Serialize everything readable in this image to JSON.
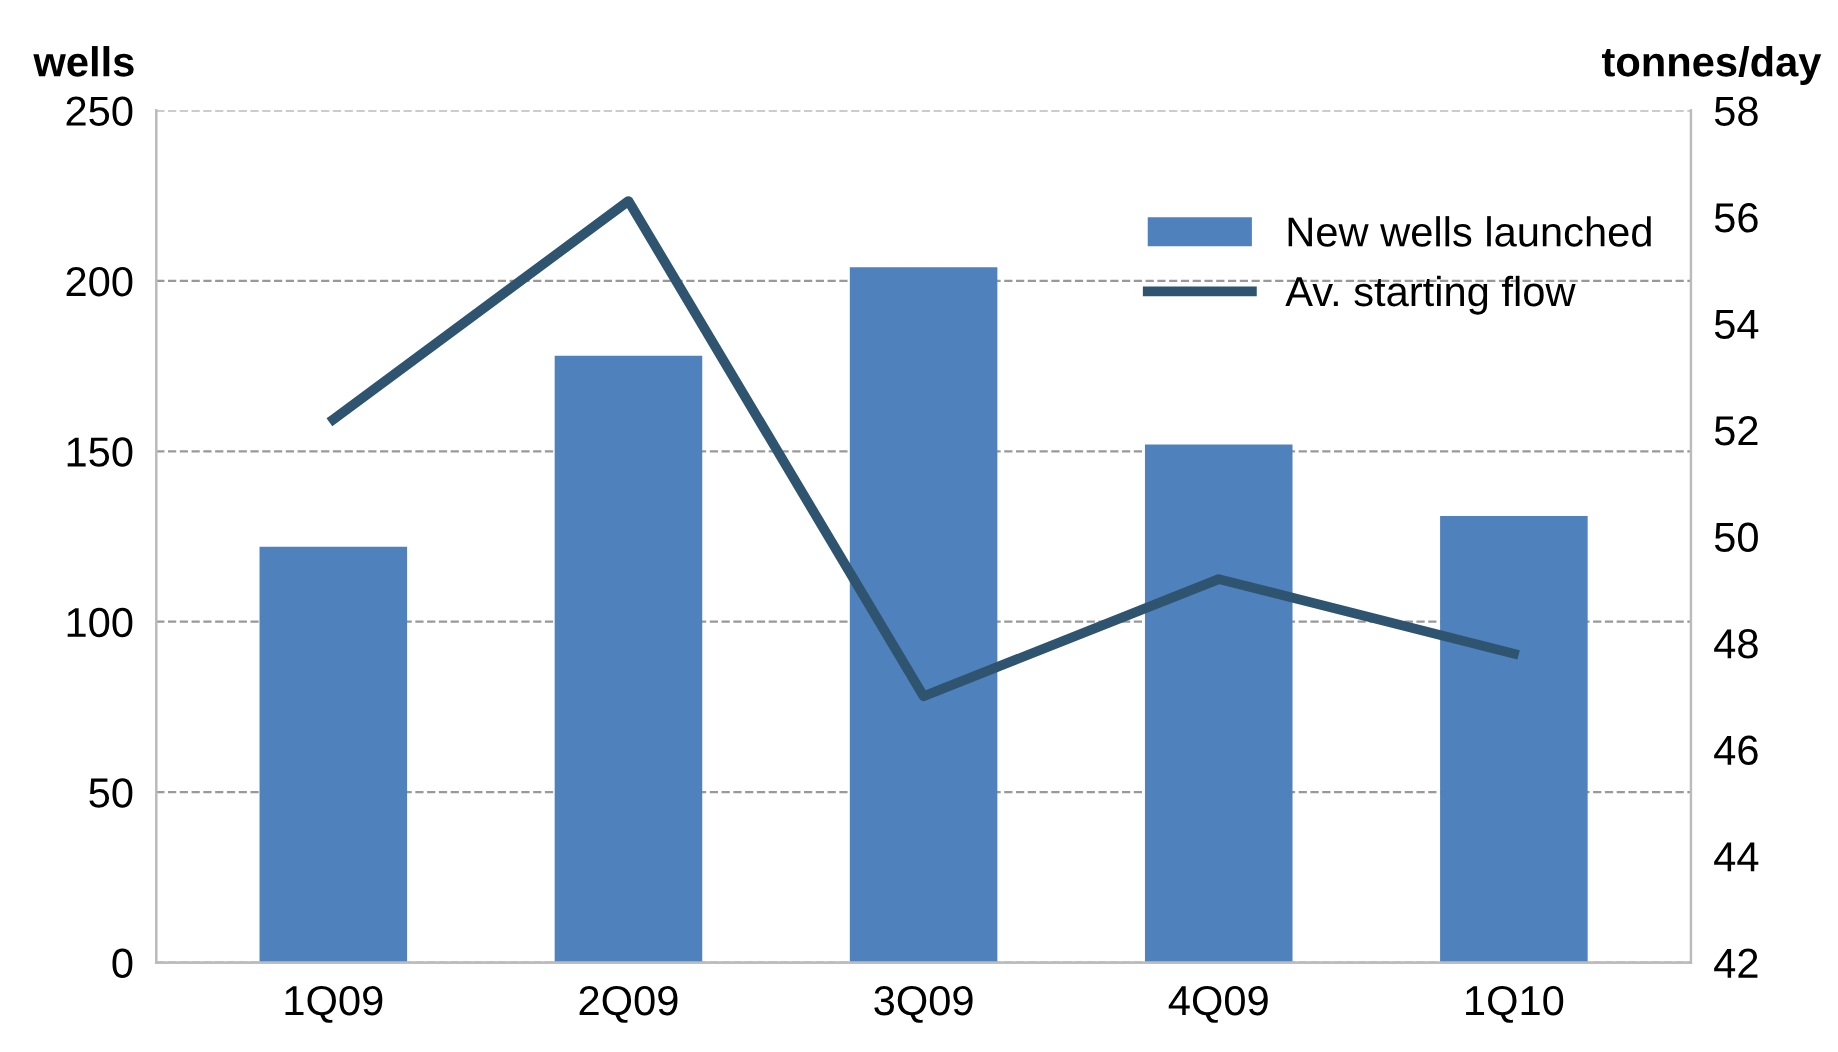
{
  "chart_data": {
    "type": "bar",
    "ylabel": "wells",
    "y2label": "tonnes/day",
    "categories": [
      "1Q09",
      "2Q09",
      "3Q09",
      "4Q09",
      "1Q10"
    ],
    "series": [
      {
        "name": "New wells launched",
        "color": "#4f81bd",
        "values": [
          122,
          178,
          204,
          152,
          131
        ]
      },
      {
        "name": "Av. starting flow",
        "type": "line",
        "axis": "y2",
        "color": "#2e5470",
        "values": [
          52.2,
          56.3,
          47.0,
          49.2,
          47.8
        ]
      }
    ],
    "ylim": [
      0,
      250
    ],
    "yticks": [
      0,
      50,
      100,
      150,
      200,
      250
    ],
    "y2lim": [
      42,
      58
    ],
    "y2ticks": [
      42,
      44,
      46,
      48,
      50,
      52,
      54,
      56,
      58
    ],
    "grid": "y",
    "legend": "top right",
    "marker": "none",
    "line_style": "solid"
  }
}
